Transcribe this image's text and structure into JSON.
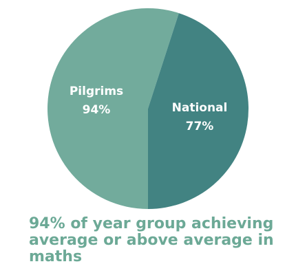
{
  "chart_data": {
    "type": "pie",
    "title": "94% of year group achieving average or above average in maths",
    "categories": [
      "Pilgrims",
      "National"
    ],
    "values": [
      94,
      77
    ],
    "value_labels": [
      "94%",
      "77%"
    ],
    "colors": [
      "#72ab9c",
      "#428382"
    ]
  }
}
